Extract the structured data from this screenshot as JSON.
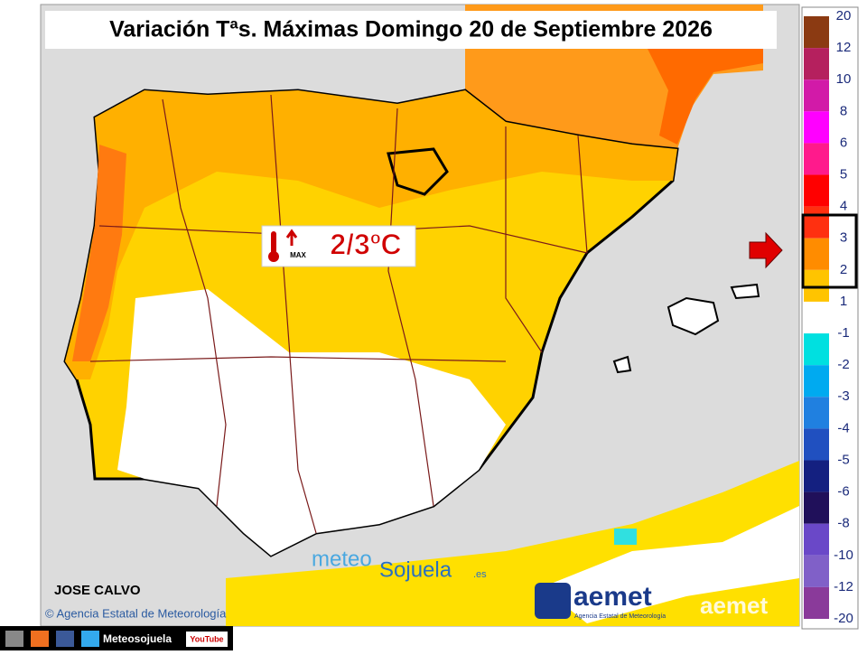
{
  "header": {
    "title": "Variación Tªs. Máximas Domingo 20 de Septiembre 2026"
  },
  "badge": {
    "label": "MAX",
    "value": "2/3ºC"
  },
  "legend": {
    "labels": [
      "20",
      "12",
      "10",
      "8",
      "6",
      "5",
      "4",
      "3",
      "2",
      "1",
      "-1",
      "-2",
      "-3",
      "-4",
      "-5",
      "-6",
      "-8",
      "-10",
      "-12",
      "-20"
    ],
    "colors": [
      "#8b3a12",
      "#b5205e",
      "#d21aa8",
      "#ff00ff",
      "#ff1a8c",
      "#ff0000",
      "#ff3010",
      "#ff8c00",
      "#ffc400",
      "#ffffff",
      "#00e0e0",
      "#00aaf0",
      "#2080e0",
      "#2050c0",
      "#142080",
      "#20105a",
      "#6a48c8",
      "#8060c8",
      "#8a3a9a"
    ]
  },
  "credits": {
    "author": "JOSE CALVO",
    "copyright": "© Agencia Estatal de Meteorología"
  },
  "logos": {
    "meteo": "meteo",
    "sojuela": "Sojuela",
    "domain": ".es",
    "aemet": "aemet",
    "aemet_subtitle": "Agencia Estatal de Meteorología",
    "aemet_watermark": "aemet"
  },
  "footer": {
    "site": "Meteosojuela",
    "youtube": "YouTube"
  }
}
